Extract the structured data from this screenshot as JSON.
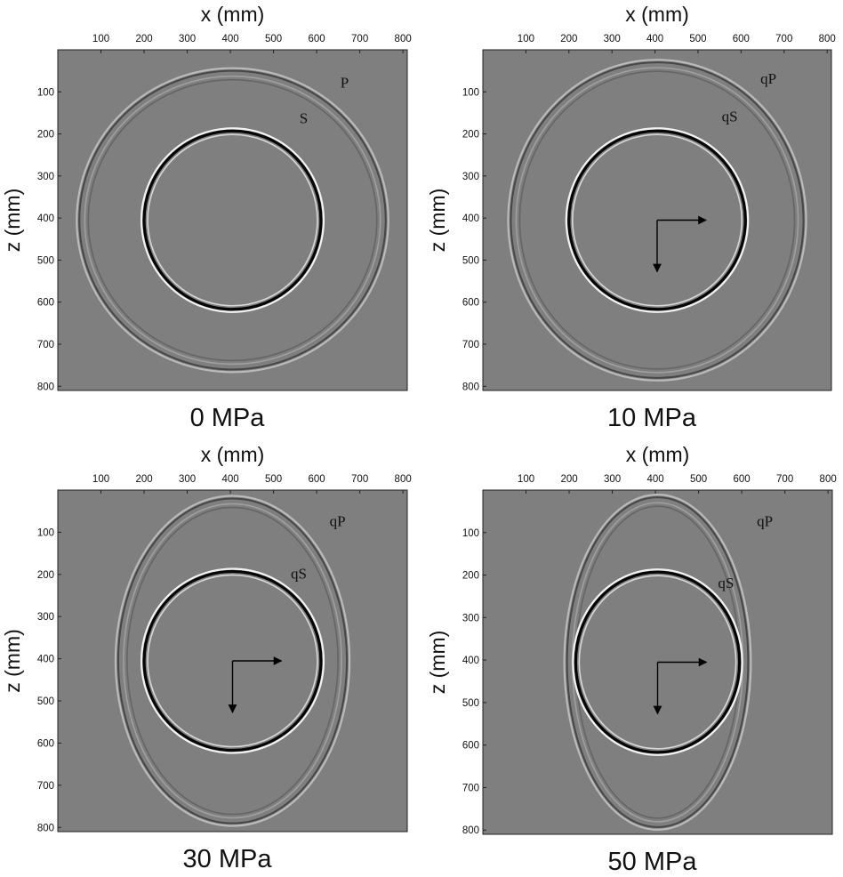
{
  "chart_data": [
    {
      "type": "heatmap",
      "title": "0 MPa",
      "xlabel": "x (mm)",
      "ylabel": "z (mm)",
      "xlim": [
        0,
        810
      ],
      "ylim": [
        0,
        810
      ],
      "xticks": [
        100,
        200,
        300,
        400,
        500,
        600,
        700,
        800
      ],
      "yticks": [
        100,
        200,
        300,
        400,
        500,
        600,
        700,
        800
      ],
      "source": [
        405,
        405
      ],
      "wavefronts": [
        {
          "label": "P",
          "rx": 355,
          "rz": 355,
          "label_at": [
            655,
            90
          ]
        },
        {
          "label": "S",
          "rx": 205,
          "rz": 212,
          "label_at": [
            560,
            175
          ]
        }
      ],
      "axes_arrows": false
    },
    {
      "type": "heatmap",
      "title": "10 MPa",
      "xlabel": "x (mm)",
      "ylabel": "z (mm)",
      "xlim": [
        0,
        810
      ],
      "ylim": [
        0,
        810
      ],
      "xticks": [
        100,
        200,
        300,
        400,
        500,
        600,
        700,
        800
      ],
      "yticks": [
        100,
        200,
        300,
        400,
        500,
        600,
        700,
        800
      ],
      "source": [
        405,
        405
      ],
      "wavefronts": [
        {
          "label": "qP",
          "rx": 340,
          "rz": 375,
          "label_at": [
            645,
            80
          ]
        },
        {
          "label": "qS",
          "rx": 205,
          "rz": 212,
          "label_at": [
            555,
            170
          ]
        }
      ],
      "axes_arrows": true
    },
    {
      "type": "heatmap",
      "title": "30 MPa",
      "xlabel": "x (mm)",
      "ylabel": "z (mm)",
      "xlim": [
        0,
        810
      ],
      "ylim": [
        0,
        810
      ],
      "xticks": [
        100,
        200,
        300,
        400,
        500,
        600,
        700,
        800
      ],
      "yticks": [
        100,
        200,
        300,
        400,
        500,
        600,
        700,
        800
      ],
      "source": [
        405,
        405
      ],
      "wavefronts": [
        {
          "label": "qP",
          "rx": 265,
          "rz": 385,
          "label_at": [
            630,
            85
          ]
        },
        {
          "label": "qS",
          "rx": 205,
          "rz": 212,
          "label_at": [
            540,
            210
          ]
        }
      ],
      "axes_arrows": true
    },
    {
      "type": "heatmap",
      "title": "50 MPa",
      "xlabel": "x (mm)",
      "ylabel": "z (mm)",
      "xlim": [
        0,
        810
      ],
      "ylim": [
        0,
        810
      ],
      "xticks": [
        100,
        200,
        300,
        400,
        500,
        600,
        700,
        800
      ],
      "yticks": [
        100,
        200,
        300,
        400,
        500,
        600,
        700,
        800
      ],
      "source": [
        405,
        405
      ],
      "wavefronts": [
        {
          "label": "qP",
          "rx": 210,
          "rz": 388,
          "label_at": [
            635,
            85
          ]
        },
        {
          "label": "qS",
          "rx": 190,
          "rz": 212,
          "label_at": [
            545,
            230
          ]
        }
      ],
      "axes_arrows": true
    }
  ],
  "colors": {
    "background": "#7f7f7f",
    "wave_dark": "#050505",
    "wave_light": "#f2f2f2",
    "text": "#111111"
  }
}
